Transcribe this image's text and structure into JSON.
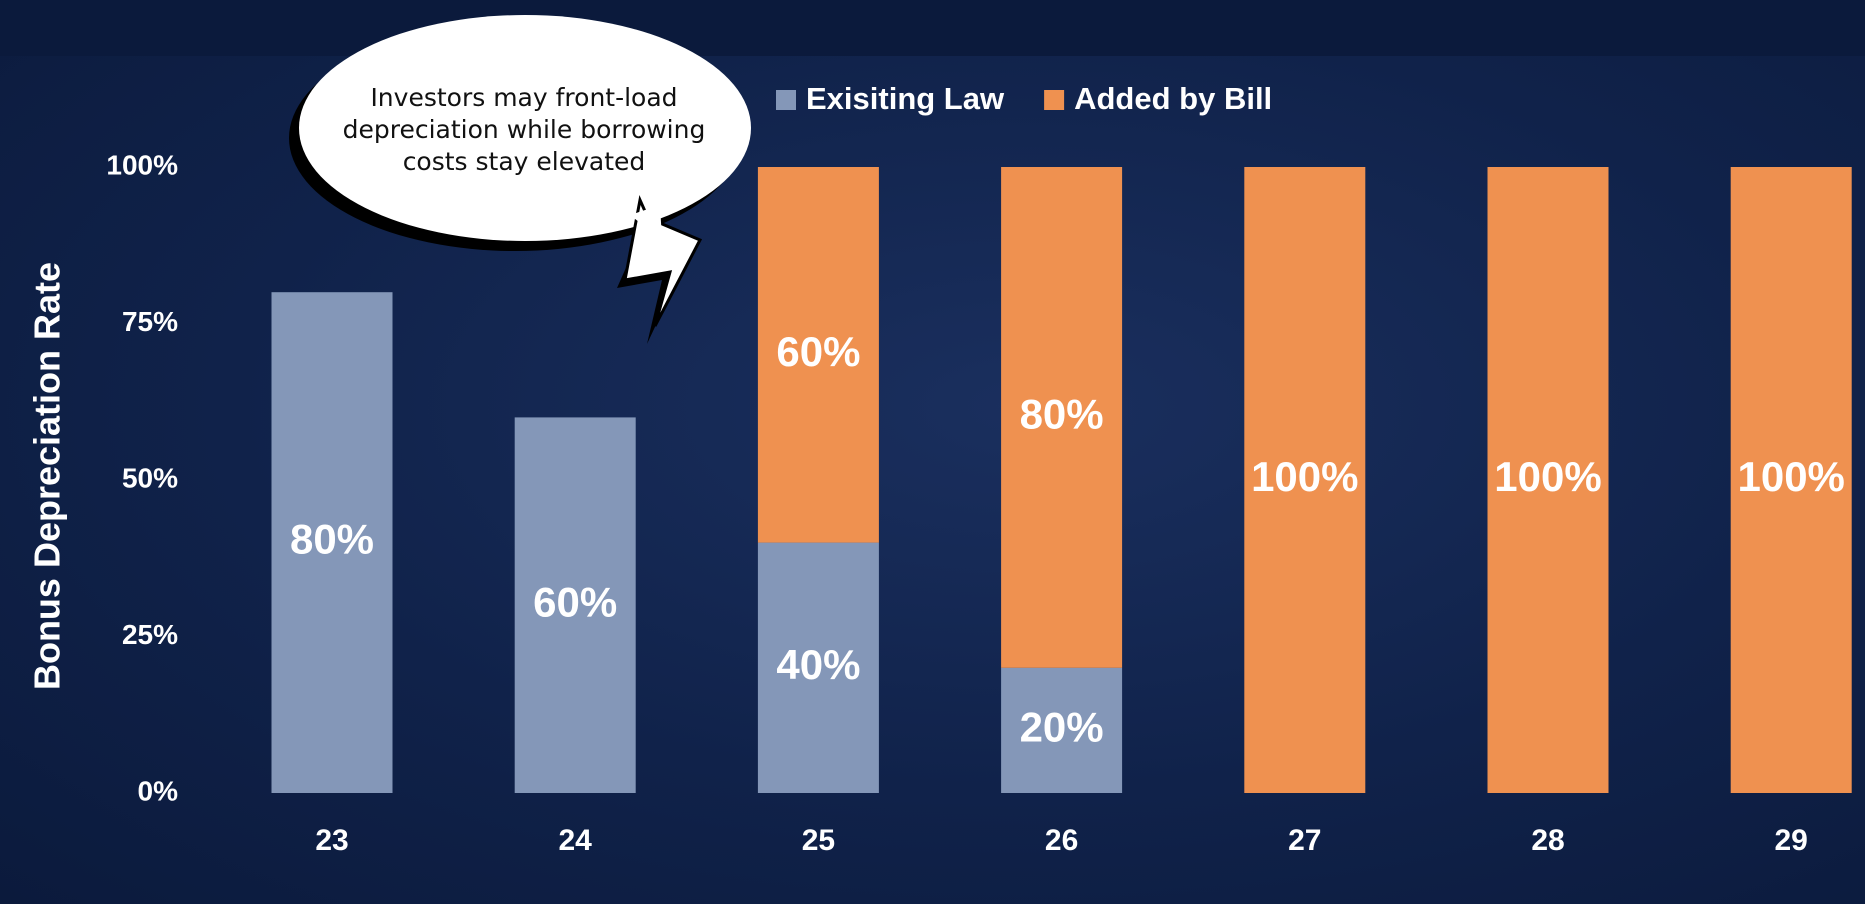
{
  "chart_data": {
    "type": "stacked_bar",
    "y_label": "Bonus Depreciation Rate",
    "annotation": "Investors may front-load depreciation while borrowing costs stay elevated",
    "categories": [
      "23",
      "24",
      "25",
      "26",
      "27",
      "28",
      "29"
    ],
    "series": [
      {
        "name": "Exisiting Law",
        "color": "#8497b8",
        "values": [
          80,
          60,
          40,
          20,
          0,
          0,
          0
        ],
        "value_labels": [
          "80%",
          "60%",
          "40%",
          "20%",
          null,
          null,
          null
        ]
      },
      {
        "name": "Added by Bill",
        "color": "#ef9150",
        "values": [
          0,
          0,
          60,
          80,
          100,
          100,
          100
        ],
        "value_labels": [
          null,
          null,
          "60%",
          "80%",
          "100%",
          "100%",
          "100%"
        ]
      }
    ],
    "ylim": [
      0,
      100
    ],
    "yticks": [
      {
        "value": 0,
        "label": "0%"
      },
      {
        "value": 25,
        "label": "25%"
      },
      {
        "value": 50,
        "label": "50%"
      },
      {
        "value": 75,
        "label": "75%"
      },
      {
        "value": 100,
        "label": "100%"
      }
    ],
    "legend": "top"
  }
}
